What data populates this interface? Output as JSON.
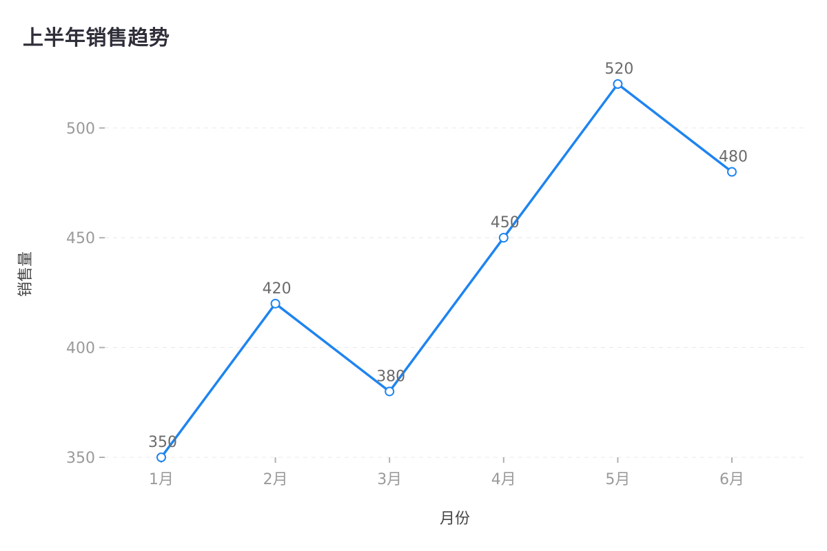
{
  "chart_data": {
    "type": "line",
    "title": "上半年销售趋势",
    "categories": [
      "1月",
      "2月",
      "3月",
      "4月",
      "5月",
      "6月"
    ],
    "series": [
      {
        "values": [
          350,
          420,
          380,
          450,
          520,
          480
        ],
        "color": "#1e84f0"
      }
    ],
    "xlabel": "月份",
    "ylabel": "销售量",
    "ylim": [
      350,
      520
    ],
    "yticks": [
      350,
      400,
      450,
      500
    ],
    "grid": true,
    "data_labels": true,
    "legend": "none"
  },
  "colors": {
    "line": "#1e84f0",
    "marker_fill": "#ffffff",
    "grid": "#e8e8e8",
    "axis": "#b0b0b0",
    "title": "#2f2f3a"
  }
}
